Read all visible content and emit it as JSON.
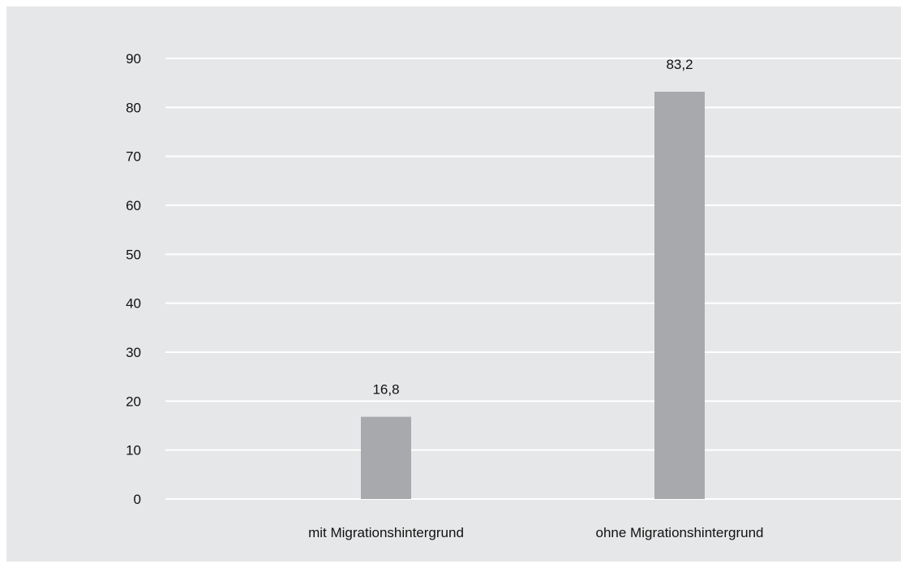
{
  "chart_data": {
    "type": "bar",
    "categories": [
      "mit Migrationshintergrund",
      "ohne Migrationshintergrund"
    ],
    "values": [
      16.8,
      83.2
    ],
    "value_labels": [
      "16,8",
      "83,2"
    ],
    "title": "",
    "xlabel": "",
    "ylabel": "",
    "ylim": [
      0,
      90
    ],
    "yticks": [
      0,
      10,
      20,
      30,
      40,
      50,
      60,
      70,
      80,
      90
    ],
    "grid": true,
    "bar_color": "#a7a9ac",
    "background_color": "#e6e7e8",
    "grid_color": "#ffffff"
  }
}
